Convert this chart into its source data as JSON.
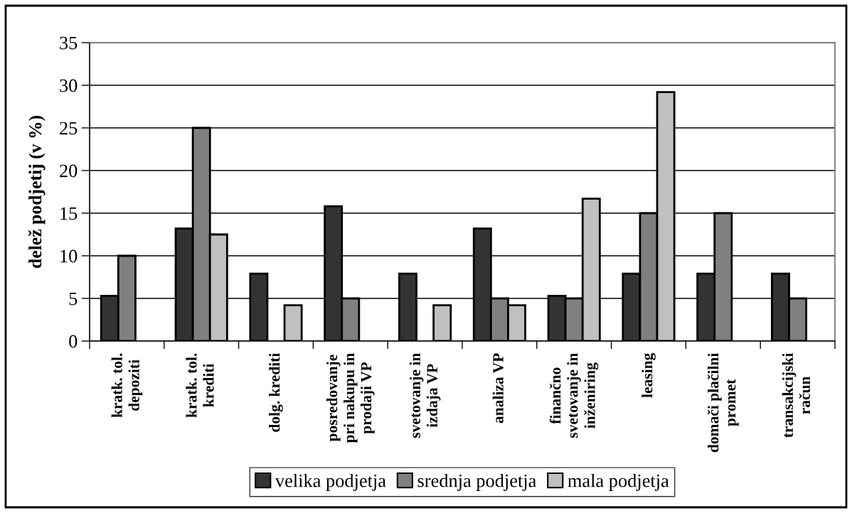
{
  "chart_data": {
    "type": "bar",
    "ylabel": "delež podjetij (v %)",
    "categories": [
      "kratk. tol.\ndepoziti",
      "kratk. tol.\nkrediti",
      "dolg. krediti",
      "posredovanje\npri nakupu in\nprodaji VP",
      "svetovanje in\nizdaja VP",
      "analiza VP",
      "finančno\nsvetovanje in\ninženiring",
      "leasing",
      "domači plačilni\npromet",
      "transakcijski\nračun"
    ],
    "series": [
      {
        "name": "velika podjetja",
        "color": "#333333",
        "values": [
          5.3,
          13.2,
          7.9,
          15.8,
          7.9,
          13.2,
          5.3,
          7.9,
          7.9,
          7.9
        ]
      },
      {
        "name": "srednja podjetja",
        "color": "#808080",
        "values": [
          10,
          25,
          null,
          5,
          null,
          5,
          5,
          15,
          15,
          5
        ]
      },
      {
        "name": "mala podjetja",
        "color": "#c0c0c0",
        "values": [
          null,
          12.5,
          4.2,
          null,
          4.2,
          4.2,
          16.7,
          29.2,
          null,
          null
        ]
      }
    ],
    "ylim": [
      0,
      35
    ],
    "yticks": [
      0,
      5,
      10,
      15,
      20,
      25,
      30,
      35
    ],
    "grid": "y",
    "legend": "bottom"
  }
}
